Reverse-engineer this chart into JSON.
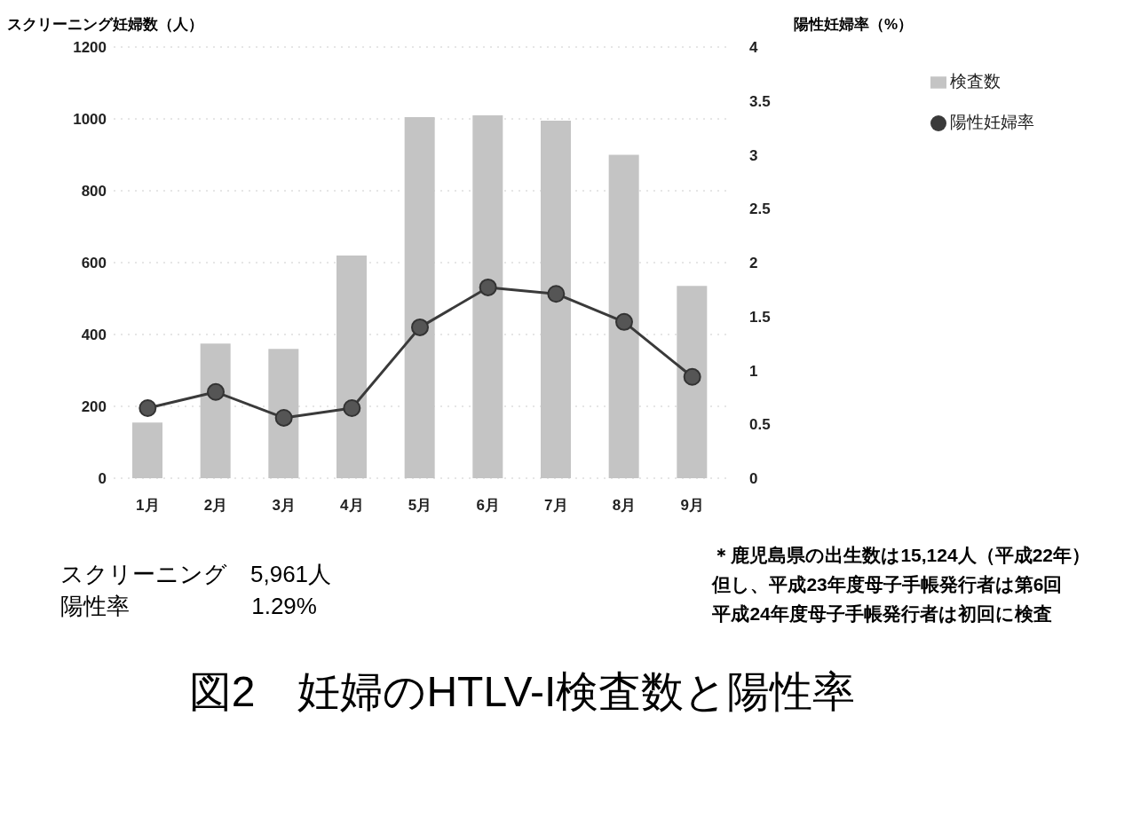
{
  "chart_data": {
    "type": "bar",
    "title": "図2　妊婦のHTLV-I検査数と陽性率",
    "ylabel": "スクリーニング妊婦数（人）",
    "y2label": "陽性妊婦率（%）",
    "categories": [
      "1月",
      "2月",
      "3月",
      "4月",
      "5月",
      "6月",
      "7月",
      "8月",
      "9月"
    ],
    "series": [
      {
        "name": "検査数",
        "color": "#c4c4c4",
        "values": [
          155,
          375,
          360,
          620,
          1005,
          1010,
          995,
          900,
          535
        ]
      },
      {
        "name": "陽性妊婦率",
        "type": "line",
        "axis": "y2",
        "color": "#3a3a3a",
        "values": [
          0.65,
          0.8,
          0.56,
          0.65,
          1.4,
          1.77,
          1.71,
          1.45,
          0.94
        ]
      }
    ],
    "ylim": [
      0,
      1200
    ],
    "yticks": [
      0,
      200,
      400,
      600,
      800,
      1000,
      1200
    ],
    "y2lim": [
      0,
      4
    ],
    "y2ticks": [
      0,
      0.5,
      1,
      1.5,
      2,
      2.5,
      3,
      3.5,
      4
    ],
    "grid": "y",
    "legend": "top right",
    "marker": "circle",
    "line_style": "solid",
    "annotations": [
      "スクリーニング　5,961人",
      "陽性率　　　　　 1.29%",
      "＊鹿児島県の出生数は15,124人（平成22年）",
      "但し、平成23年度母子手帳発行者は第6回",
      "平成24年度母子手帳発行者は初回に検査"
    ]
  }
}
